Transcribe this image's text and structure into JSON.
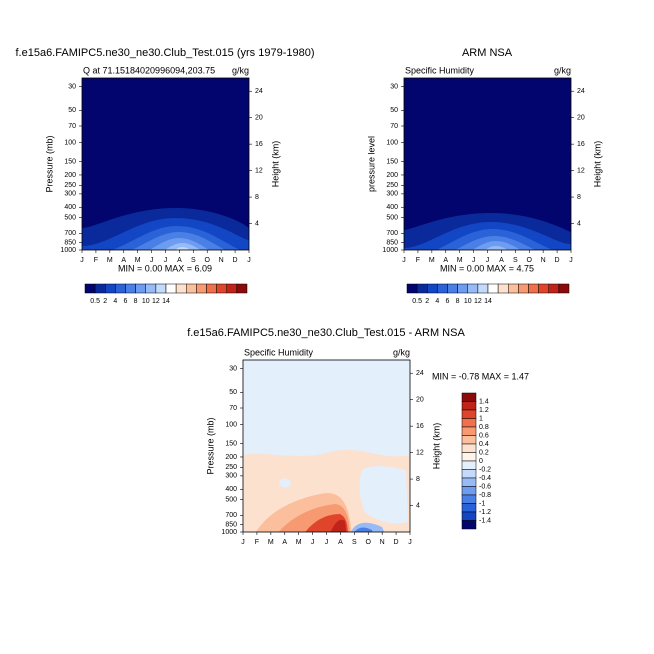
{
  "chart_data": [
    {
      "type": "contour",
      "title": "f.e15a6.FAMIPC5.ne30_ne30.Club_Test.015 (yrs 1979-1980)",
      "left_string": "Q at 71.15184020996094,203.75",
      "right_string": "g/kg",
      "ylabel": "Pressure (mb)",
      "y2label": "Height (km)",
      "stats": "MIN =  0.00 MAX =  6.09",
      "categories": [
        "J",
        "F",
        "M",
        "A",
        "M",
        "J",
        "J",
        "A",
        "S",
        "O",
        "N",
        "D",
        "J"
      ],
      "log_y": true,
      "ylim": [
        1000,
        25
      ],
      "yticks": [
        30,
        50,
        70,
        100,
        150,
        200,
        250,
        300,
        400,
        500,
        700,
        850,
        1000
      ],
      "y2lim": [
        0,
        26
      ],
      "y2ticks": [
        4,
        8,
        12,
        16,
        20,
        24
      ],
      "colorbar": {
        "orientation": "horizontal",
        "ticks": [
          0.5,
          2,
          4,
          6,
          8,
          10,
          12,
          14
        ],
        "colors": [
          "#03056e",
          "#0a2a9c",
          "#1346c4",
          "#2a62d8",
          "#4a80e6",
          "#6d9cf0",
          "#97bbf6",
          "#c4dafb",
          "#ffffff",
          "#fde1cf",
          "#fbbf9e",
          "#f79a72",
          "#f0704c",
          "#e0452c",
          "#c0231a",
          "#8c0a0a"
        ]
      }
    },
    {
      "type": "contour",
      "title": "ARM NSA",
      "left_string": "Specific Humidity",
      "right_string": "g/kg",
      "ylabel": "pressure level",
      "y2label": "Height (km)",
      "stats": "MIN =  0.00 MAX =  4.75",
      "categories": [
        "J",
        "F",
        "M",
        "A",
        "M",
        "J",
        "J",
        "A",
        "S",
        "O",
        "N",
        "D",
        "J"
      ],
      "log_y": true,
      "ylim": [
        1000,
        25
      ],
      "yticks": [
        30,
        50,
        70,
        100,
        150,
        200,
        250,
        300,
        400,
        500,
        700,
        850,
        1000
      ],
      "y2lim": [
        0,
        26
      ],
      "y2ticks": [
        4,
        8,
        12,
        16,
        20,
        24
      ],
      "colorbar": {
        "orientation": "horizontal",
        "ticks": [
          0.5,
          2,
          4,
          6,
          8,
          10,
          12,
          14
        ],
        "colors": [
          "#03056e",
          "#0a2a9c",
          "#1346c4",
          "#2a62d8",
          "#4a80e6",
          "#6d9cf0",
          "#97bbf6",
          "#c4dafb",
          "#ffffff",
          "#fde1cf",
          "#fbbf9e",
          "#f79a72",
          "#f0704c",
          "#e0452c",
          "#c0231a",
          "#8c0a0a"
        ]
      }
    },
    {
      "type": "contour",
      "title": "f.e15a6.FAMIPC5.ne30_ne30.Club_Test.015 - ARM NSA",
      "left_string": "Specific Humidity",
      "right_string": "g/kg",
      "ylabel": "Pressure (mb)",
      "y2label": "Height (km)",
      "stats": "MIN = -0.78 MAX =  1.47",
      "categories": [
        "J",
        "F",
        "M",
        "A",
        "M",
        "J",
        "J",
        "A",
        "S",
        "O",
        "N",
        "D",
        "J"
      ],
      "log_y": true,
      "ylim": [
        1000,
        25
      ],
      "yticks": [
        30,
        50,
        70,
        100,
        150,
        200,
        250,
        300,
        400,
        500,
        700,
        850,
        1000
      ],
      "y2lim": [
        0,
        26
      ],
      "y2ticks": [
        4,
        8,
        12,
        16,
        20,
        24
      ],
      "colorbar": {
        "orientation": "vertical",
        "ticks": [
          1.4,
          1.2,
          1,
          0.8,
          0.6,
          0.4,
          0.2,
          0,
          -0.2,
          -0.4,
          -0.6,
          -0.8,
          -1,
          -1.2,
          -1.4
        ],
        "colors": [
          "#8c0a0a",
          "#c0231a",
          "#e0452c",
          "#f0704c",
          "#f79a72",
          "#fbbf9e",
          "#fde1cf",
          "#fff3ea",
          "#e4effc",
          "#c4dafb",
          "#97bbf6",
          "#6d9cf0",
          "#4a80e6",
          "#2a62d8",
          "#1346c4",
          "#03056e"
        ]
      }
    }
  ]
}
